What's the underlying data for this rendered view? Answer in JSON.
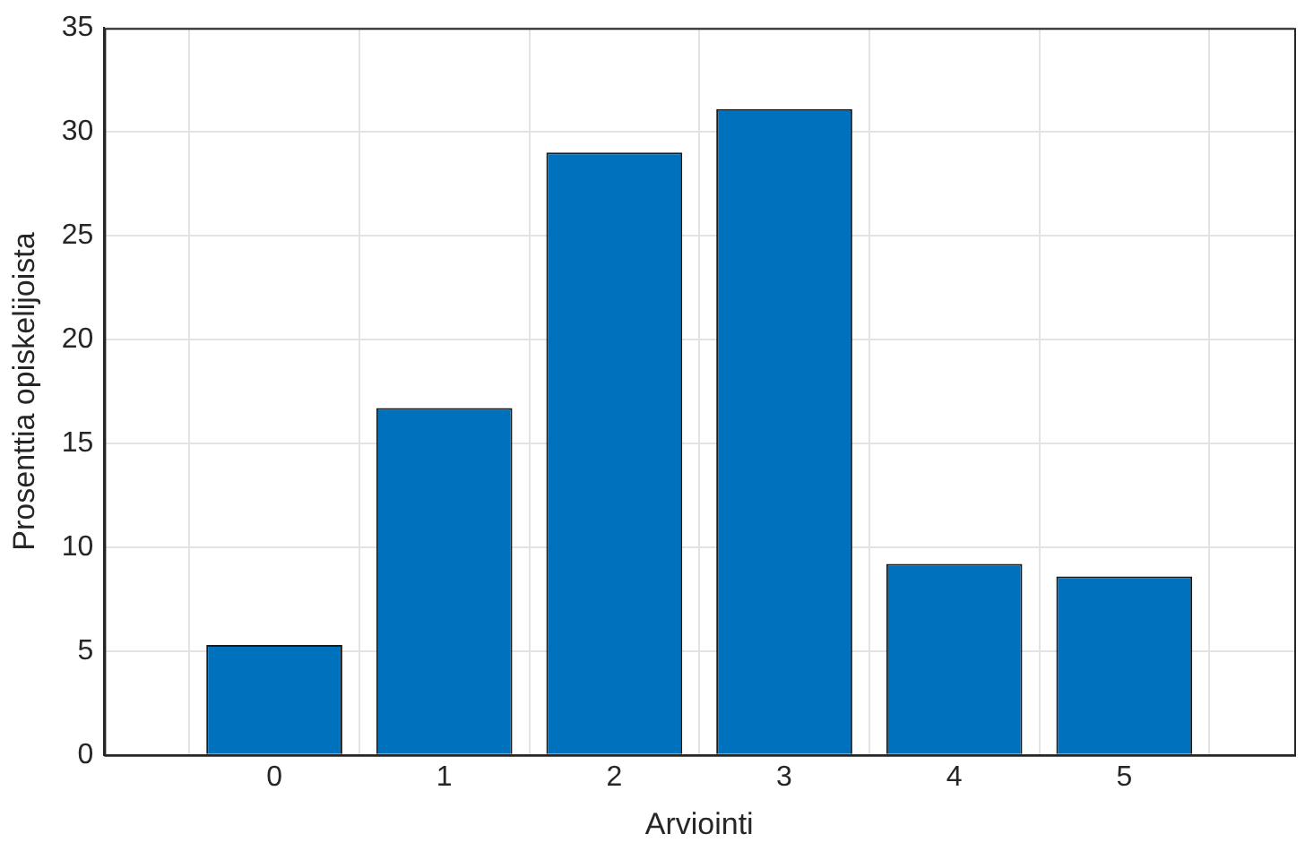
{
  "chart_data": {
    "type": "bar",
    "xlabel": "Arviointi",
    "ylabel": "Prosenttia opiskelijoista",
    "x": [
      0,
      1,
      2,
      3,
      4,
      5
    ],
    "values": [
      5.3,
      16.7,
      29.0,
      31.1,
      9.2,
      8.6
    ],
    "color": "#0072bd",
    "xlim": [
      -1,
      6
    ],
    "xticks": [
      0,
      1,
      2,
      3,
      4,
      5
    ],
    "ylim": [
      0,
      35
    ],
    "yticks": [
      0,
      5,
      10,
      15,
      20,
      25,
      30,
      35
    ],
    "grid": true
  }
}
